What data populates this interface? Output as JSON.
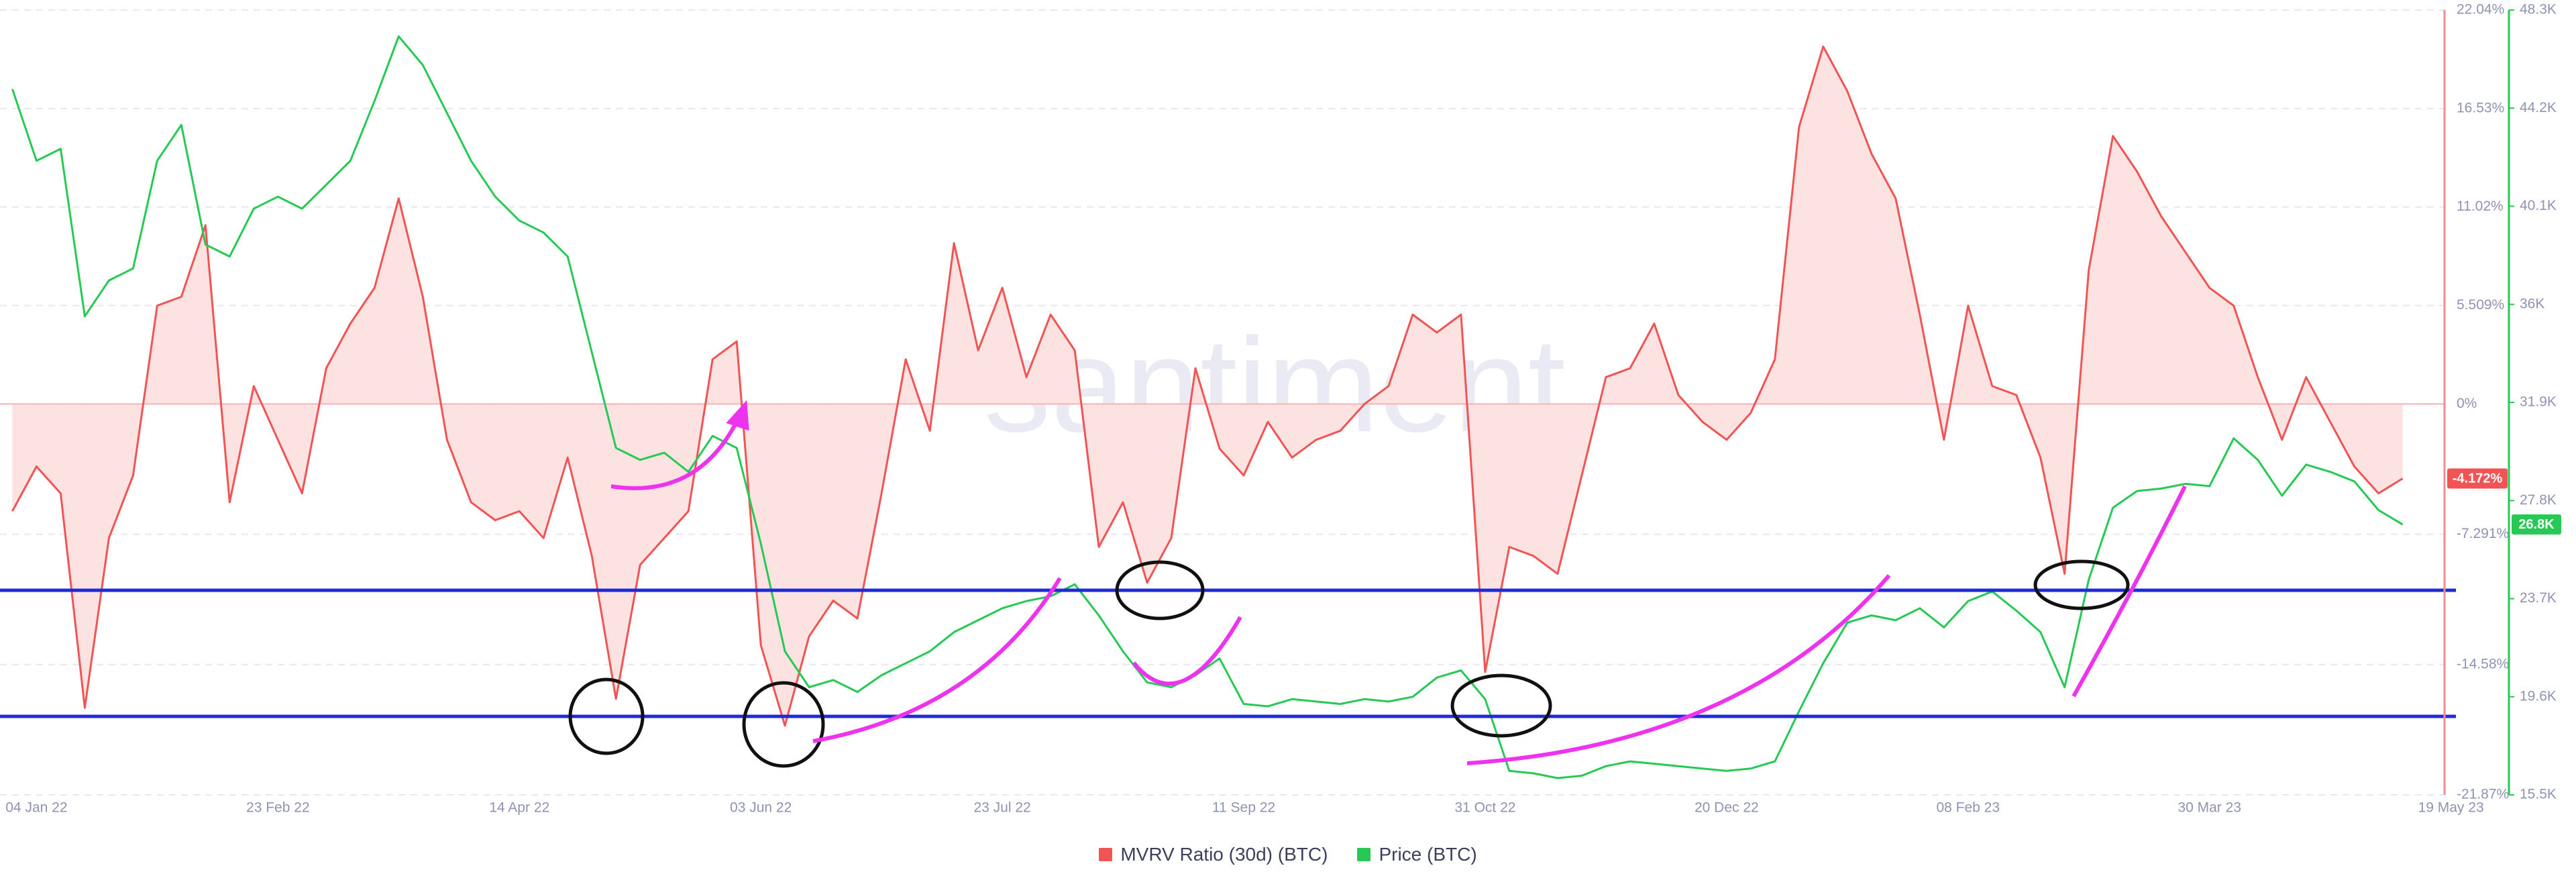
{
  "chart_data": {
    "type": "line",
    "watermark": "santiment",
    "grid": true,
    "legend": "bottom",
    "x": [
      "2021-12-30",
      "2022-01-04",
      "2022-01-09",
      "2022-01-14",
      "2022-01-19",
      "2022-01-24",
      "2022-01-29",
      "2022-02-03",
      "2022-02-08",
      "2022-02-13",
      "2022-02-18",
      "2022-02-23",
      "2022-02-28",
      "2022-03-05",
      "2022-03-10",
      "2022-03-15",
      "2022-03-20",
      "2022-03-25",
      "2022-03-30",
      "2022-04-04",
      "2022-04-09",
      "2022-04-14",
      "2022-04-19",
      "2022-04-24",
      "2022-04-29",
      "2022-05-04",
      "2022-05-09",
      "2022-05-14",
      "2022-05-19",
      "2022-05-24",
      "2022-05-29",
      "2022-06-03",
      "2022-06-08",
      "2022-06-13",
      "2022-06-18",
      "2022-06-23",
      "2022-06-28",
      "2022-07-03",
      "2022-07-08",
      "2022-07-13",
      "2022-07-18",
      "2022-07-23",
      "2022-07-28",
      "2022-08-02",
      "2022-08-07",
      "2022-08-12",
      "2022-08-17",
      "2022-08-22",
      "2022-08-27",
      "2022-09-01",
      "2022-09-06",
      "2022-09-11",
      "2022-09-16",
      "2022-09-21",
      "2022-09-26",
      "2022-10-01",
      "2022-10-06",
      "2022-10-11",
      "2022-10-16",
      "2022-10-21",
      "2022-10-26",
      "2022-10-31",
      "2022-11-05",
      "2022-11-10",
      "2022-11-15",
      "2022-11-20",
      "2022-11-25",
      "2022-11-30",
      "2022-12-05",
      "2022-12-10",
      "2022-12-15",
      "2022-12-20",
      "2022-12-25",
      "2022-12-30",
      "2023-01-04",
      "2023-01-09",
      "2023-01-14",
      "2023-01-19",
      "2023-01-24",
      "2023-01-29",
      "2023-02-03",
      "2023-02-08",
      "2023-02-13",
      "2023-02-18",
      "2023-02-23",
      "2023-02-28",
      "2023-03-05",
      "2023-03-10",
      "2023-03-15",
      "2023-03-20",
      "2023-03-25",
      "2023-03-30",
      "2023-04-04",
      "2023-04-09",
      "2023-04-14",
      "2023-04-19",
      "2023-04-24",
      "2023-04-29",
      "2023-05-04",
      "2023-05-09"
    ],
    "xlim": [
      "2021-12-28",
      "2023-05-21"
    ],
    "xticks": [
      {
        "value": "2022-01-04",
        "label": "04 Jan 22"
      },
      {
        "value": "2022-02-23",
        "label": "23 Feb 22"
      },
      {
        "value": "2022-04-14",
        "label": "14 Apr 22"
      },
      {
        "value": "2022-06-03",
        "label": "03 Jun 22"
      },
      {
        "value": "2022-07-23",
        "label": "23 Jul 22"
      },
      {
        "value": "2022-09-11",
        "label": "11 Sep 22"
      },
      {
        "value": "2022-10-31",
        "label": "31 Oct 22"
      },
      {
        "value": "2022-12-20",
        "label": "20 Dec 22"
      },
      {
        "value": "2023-02-08",
        "label": "08 Feb 23"
      },
      {
        "value": "2023-03-30",
        "label": "30 Mar 23"
      },
      {
        "value": "2023-05-19",
        "label": "19 May 23"
      }
    ],
    "ylim": [
      -21.87,
      22.04
    ],
    "yticks": [
      {
        "value": 22.04,
        "label": "22.04%"
      },
      {
        "value": 16.53,
        "label": "16.53%"
      },
      {
        "value": 11.02,
        "label": "11.02%"
      },
      {
        "value": 5.509,
        "label": "5.509%"
      },
      {
        "value": 0,
        "label": "0%"
      },
      {
        "value": -7.291,
        "label": "-7.291%"
      },
      {
        "value": -14.58,
        "label": "-14.58%"
      },
      {
        "value": -21.87,
        "label": "-21.87%"
      }
    ],
    "y2lim": [
      15500,
      48300
    ],
    "y2ticks": [
      {
        "value": 48300,
        "label": "48.3K"
      },
      {
        "value": 44200,
        "label": "44.2K"
      },
      {
        "value": 40100,
        "label": "40.1K"
      },
      {
        "value": 36000,
        "label": "36K"
      },
      {
        "value": 31900,
        "label": "31.9K"
      },
      {
        "value": 27800,
        "label": "27.8K"
      },
      {
        "value": 23700,
        "label": "23.7K"
      },
      {
        "value": 19600,
        "label": "19.6K"
      },
      {
        "value": 15500,
        "label": "15.5K"
      }
    ],
    "series": [
      {
        "name": "MVRV Ratio (30d) (BTC)",
        "color": "#f05454",
        "fill": "#fde2e2",
        "last_label": "-4.172%",
        "values": [
          -6.0,
          -3.5,
          -5.0,
          -17.0,
          -7.5,
          -4.0,
          5.5,
          6.0,
          10.0,
          -5.5,
          1.0,
          -2.0,
          -5.0,
          2.0,
          4.5,
          6.5,
          11.5,
          6.0,
          -2.0,
          -5.5,
          -6.5,
          -6.0,
          -7.5,
          -3.0,
          -8.5,
          -16.5,
          -9.0,
          -7.5,
          -6.0,
          2.5,
          3.5,
          -13.5,
          -18.0,
          -13.0,
          -11.0,
          -12.0,
          -5.0,
          2.5,
          -1.5,
          9.0,
          3.0,
          6.5,
          1.5,
          5.0,
          3.0,
          -8.0,
          -5.5,
          -10.0,
          -7.5,
          2.0,
          -2.5,
          -4.0,
          -1.0,
          -3.0,
          -2.0,
          -1.5,
          0.0,
          1.0,
          5.0,
          4.0,
          5.0,
          -15.0,
          -8.0,
          -8.5,
          -9.5,
          -4.0,
          1.5,
          2.0,
          4.5,
          0.5,
          -1.0,
          -2.0,
          -0.5,
          2.5,
          15.5,
          20.0,
          17.5,
          14.0,
          11.5,
          5.0,
          -2.0,
          5.5,
          1.0,
          0.5,
          -3.0,
          -9.5,
          7.5,
          15.0,
          13.0,
          10.5,
          8.5,
          6.5,
          5.5,
          1.5,
          -2.0,
          1.5,
          -1.0,
          -3.5,
          -5.0,
          -4.172
        ]
      },
      {
        "name": "Price (BTC)",
        "color": "#26c953",
        "axis": "y2",
        "last_label": "26.8K",
        "values": [
          45000,
          42000,
          42500,
          35500,
          37000,
          37500,
          42000,
          43500,
          38500,
          38000,
          40000,
          40500,
          40000,
          41000,
          42000,
          44500,
          47200,
          46000,
          44000,
          42000,
          40500,
          39500,
          39000,
          38000,
          34000,
          30000,
          29500,
          29800,
          29000,
          30500,
          30000,
          26000,
          21500,
          20000,
          20300,
          19800,
          20500,
          21000,
          21500,
          22300,
          22800,
          23300,
          23600,
          23800,
          24300,
          23000,
          21500,
          20200,
          20000,
          20500,
          21200,
          19300,
          19200,
          19500,
          19400,
          19300,
          19500,
          19400,
          19600,
          20400,
          20700,
          19500,
          16500,
          16400,
          16200,
          16300,
          16700,
          16900,
          16800,
          16700,
          16600,
          16500,
          16600,
          16900,
          19000,
          21000,
          22700,
          23000,
          22800,
          23300,
          22500,
          23600,
          24000,
          23200,
          22300,
          20000,
          24500,
          27500,
          28200,
          28300,
          28500,
          28400,
          30400,
          29500,
          28000,
          29300,
          29000,
          28600,
          27400,
          26800
        ]
      }
    ]
  }
}
